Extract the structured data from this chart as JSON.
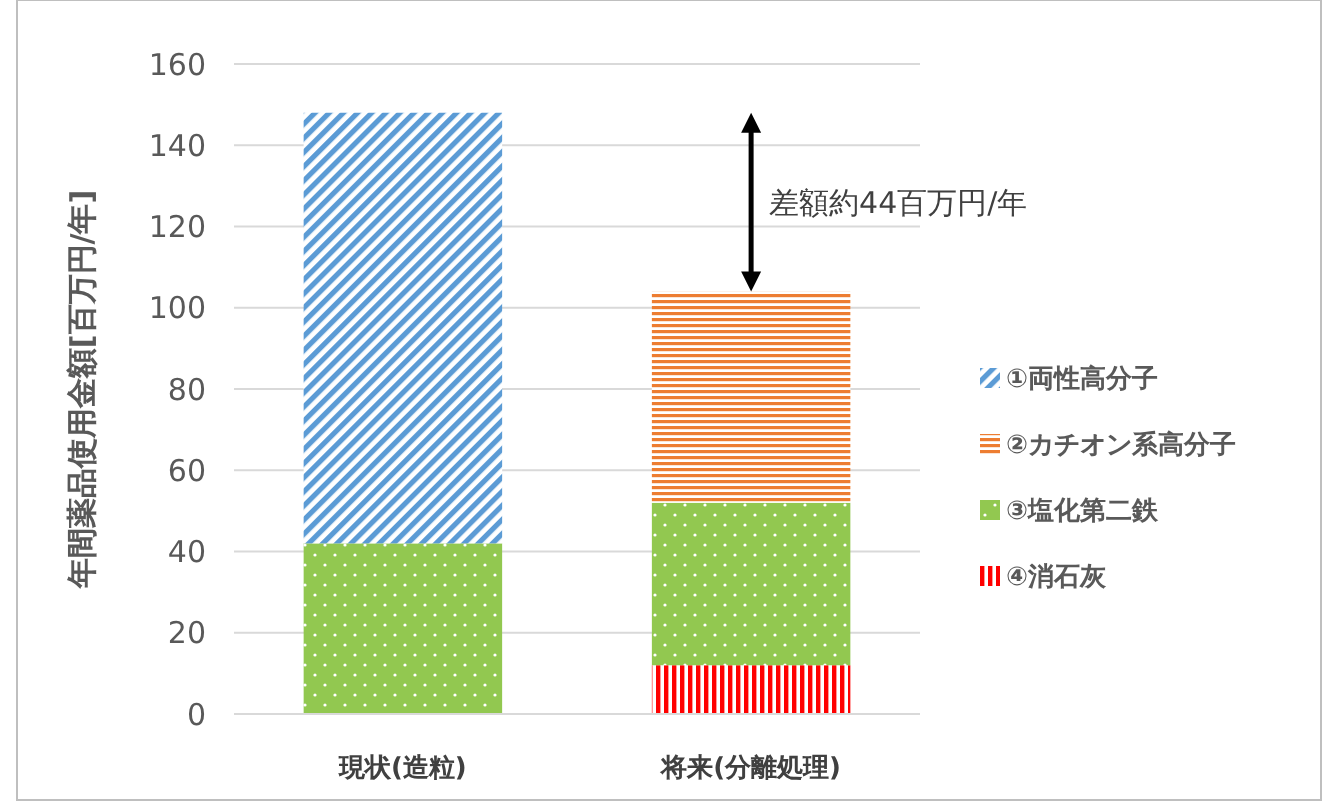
{
  "chart_data": {
    "type": "bar",
    "stacked": true,
    "ylabel": "年間薬品使用金額[百万円/年]",
    "categories": [
      "現状(造粒)",
      "将来(分離処理)"
    ],
    "series": [
      {
        "name": "④消石灰",
        "color": "#ff0000",
        "values": [
          0,
          12
        ]
      },
      {
        "name": "③塩化第二鉄",
        "color": "#92c850",
        "values": [
          42,
          40
        ]
      },
      {
        "name": "②カチオン系高分子",
        "color": "#ed7d31",
        "values": [
          0,
          52
        ]
      },
      {
        "name": "①両性高分子",
        "color": "#5b9bd5",
        "values": [
          106,
          0
        ]
      }
    ],
    "ylim": [
      0,
      160
    ],
    "yticks": [
      0,
      20,
      40,
      60,
      80,
      100,
      120,
      140,
      160
    ],
    "grid": "y",
    "legend": "right",
    "annotations": [
      "差額約44百万円/年"
    ]
  }
}
